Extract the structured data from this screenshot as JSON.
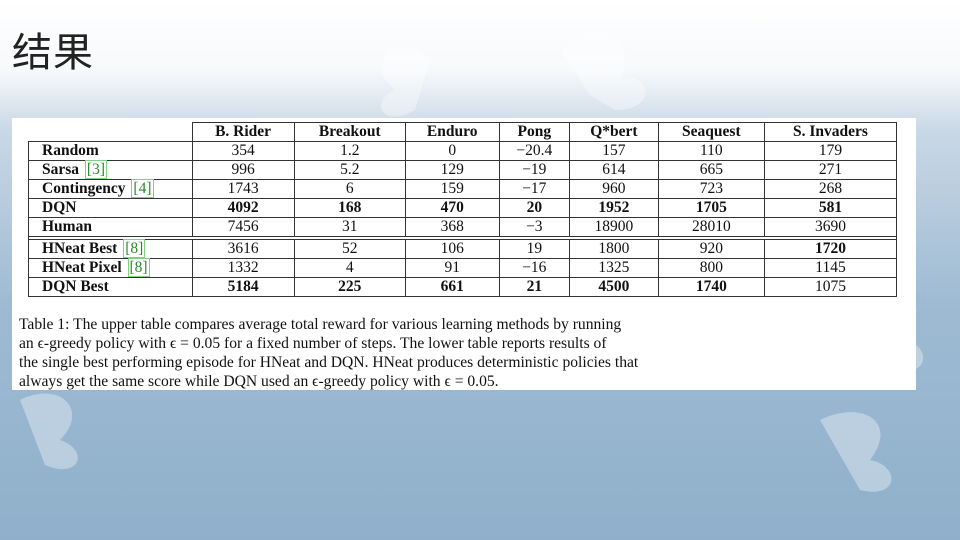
{
  "slide": {
    "title": "结果"
  },
  "table": {
    "columns": [
      "B. Rider",
      "Breakout",
      "Enduro",
      "Pong",
      "Q*bert",
      "Seaquest",
      "S. Invaders"
    ],
    "upper_rows": [
      {
        "name": "Random",
        "ref": "",
        "values": [
          "354",
          "1.2",
          "0",
          "−20.4",
          "157",
          "110",
          "179"
        ],
        "bold": [
          false,
          false,
          false,
          false,
          false,
          false,
          false
        ]
      },
      {
        "name": "Sarsa",
        "ref": "[3]",
        "values": [
          "996",
          "5.2",
          "129",
          "−19",
          "614",
          "665",
          "271"
        ],
        "bold": [
          false,
          false,
          false,
          false,
          false,
          false,
          false
        ]
      },
      {
        "name": "Contingency",
        "ref": "[4]",
        "values": [
          "1743",
          "6",
          "159",
          "−17",
          "960",
          "723",
          "268"
        ],
        "bold": [
          false,
          false,
          false,
          false,
          false,
          false,
          false
        ]
      },
      {
        "name": "DQN",
        "ref": "",
        "values": [
          "4092",
          "168",
          "470",
          "20",
          "1952",
          "1705",
          "581"
        ],
        "bold": [
          true,
          true,
          true,
          true,
          true,
          true,
          true
        ]
      },
      {
        "name": "Human",
        "ref": "",
        "values": [
          "7456",
          "31",
          "368",
          "−3",
          "18900",
          "28010",
          "3690"
        ],
        "bold": [
          false,
          false,
          false,
          false,
          false,
          false,
          false
        ]
      }
    ],
    "lower_rows": [
      {
        "name": "HNeat Best",
        "ref": "[8]",
        "values": [
          "3616",
          "52",
          "106",
          "19",
          "1800",
          "920",
          "1720"
        ],
        "bold": [
          false,
          false,
          false,
          false,
          false,
          false,
          true
        ]
      },
      {
        "name": "HNeat Pixel",
        "ref": "[8]",
        "values": [
          "1332",
          "4",
          "91",
          "−16",
          "1325",
          "800",
          "1145"
        ],
        "bold": [
          false,
          false,
          false,
          false,
          false,
          false,
          false
        ]
      },
      {
        "name": "DQN Best",
        "ref": "",
        "values": [
          "5184",
          "225",
          "661",
          "21",
          "4500",
          "1740",
          "1075"
        ],
        "bold": [
          true,
          true,
          true,
          true,
          true,
          true,
          false
        ]
      }
    ]
  },
  "caption": {
    "line1": "Table 1:  The upper table compares average total reward for various learning methods by running",
    "line2": "an ϵ-greedy policy with ϵ = 0.05 for a fixed number of steps. The lower table reports results of",
    "line3": "the single best performing episode for HNeat and DQN. HNeat produces deterministic policies that",
    "line4": "always get the same score while DQN used an ϵ-greedy policy with ϵ = 0.05."
  }
}
